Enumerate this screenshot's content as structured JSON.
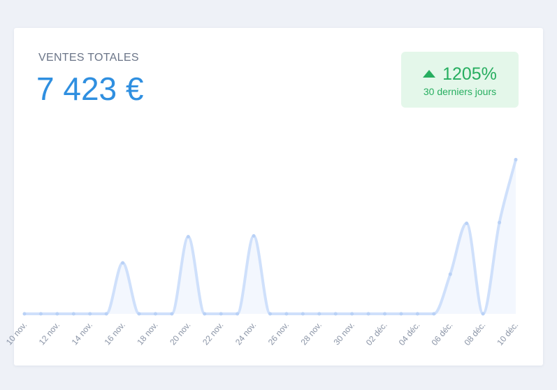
{
  "card": {
    "title": "VENTES TOTALES",
    "total": "7 423 €",
    "change": "1205%",
    "period": "30 derniers jours"
  },
  "chart_data": {
    "type": "line",
    "categories": [
      "10 nov.",
      null,
      "12 nov.",
      null,
      "14 nov.",
      null,
      "16 nov.",
      null,
      "18 nov.",
      null,
      "20 nov.",
      null,
      "22 nov.",
      null,
      "24 nov.",
      null,
      "26 nov.",
      null,
      "28 nov.",
      null,
      "30 nov.",
      null,
      "02 déc.",
      null,
      "04 déc.",
      null,
      "06 déc.",
      null,
      "08 déc.",
      null,
      "10 déc."
    ],
    "values": [
      0,
      0,
      0,
      0,
      0,
      0,
      650,
      0,
      0,
      0,
      985,
      0,
      0,
      0,
      995,
      0,
      0,
      0,
      0,
      0,
      0,
      0,
      0,
      0,
      0,
      0,
      505,
      1155,
      0,
      1165,
      1968
    ],
    "color": "#cfe0fb",
    "fill": "#f3f7fe",
    "ylim": [
      0,
      2400
    ]
  }
}
